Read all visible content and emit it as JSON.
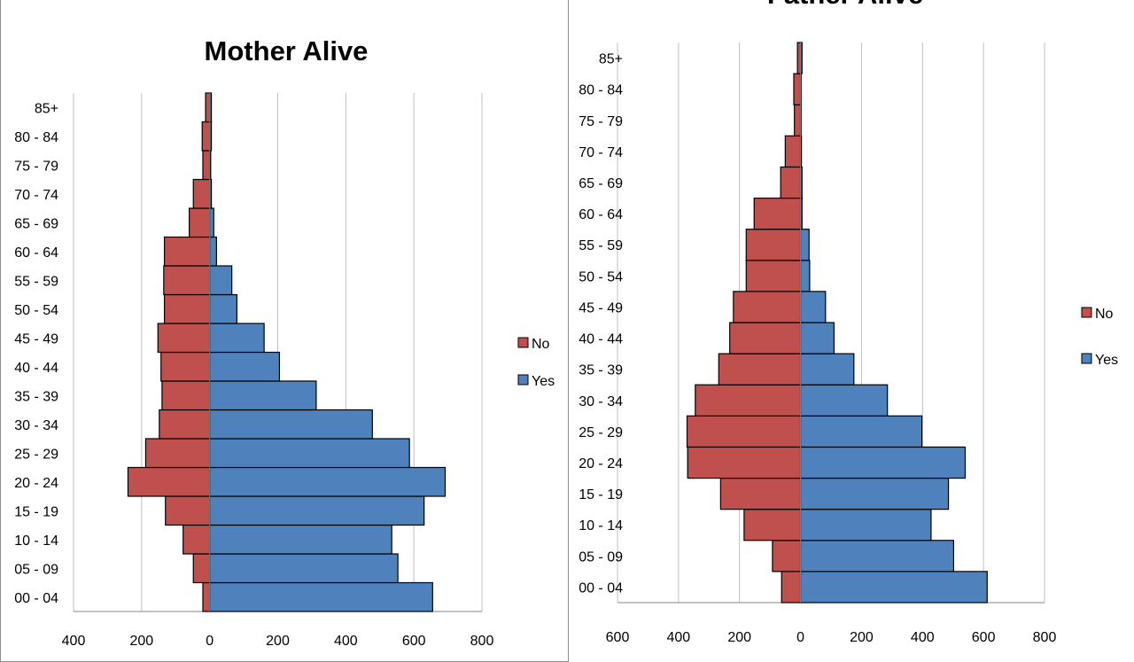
{
  "chart_data": [
    {
      "type": "bar",
      "orientation": "horizontal",
      "title": "Mother Alive",
      "categories": [
        "00 - 04",
        "05 - 09",
        "10 - 14",
        "15 - 19",
        "20 - 24",
        "25 - 29",
        "30 - 34",
        "35 - 39",
        "40 - 44",
        "45 - 49",
        "50 - 54",
        "55 - 59",
        "60 - 64",
        "65 - 69",
        "70 - 74",
        "75 - 79",
        "80 - 84",
        "85+"
      ],
      "series": [
        {
          "name": "No",
          "color": "#c0504d",
          "direction": "left",
          "values": [
            20,
            48,
            78,
            130,
            240,
            188,
            148,
            140,
            143,
            152,
            133,
            135,
            133,
            60,
            48,
            20,
            22,
            12
          ]
        },
        {
          "name": "Yes",
          "color": "#4f81bd",
          "direction": "right",
          "values": [
            655,
            553,
            535,
            630,
            692,
            587,
            478,
            313,
            205,
            160,
            80,
            65,
            20,
            12,
            5,
            3,
            5,
            5
          ]
        }
      ],
      "xlim": [
        -400,
        800
      ],
      "xticks": [
        -400,
        -200,
        0,
        200,
        400,
        600,
        800
      ],
      "xtick_labels": [
        "400",
        "200",
        "0",
        "200",
        "400",
        "600",
        "800"
      ],
      "grid": true,
      "legend": "right",
      "legend_entries": [
        "No",
        "Yes"
      ]
    },
    {
      "type": "bar",
      "orientation": "horizontal",
      "title": "Father Alive",
      "categories": [
        "00 - 04",
        "05 - 09",
        "10 - 14",
        "15 - 19",
        "20 - 24",
        "25 - 29",
        "30 - 34",
        "35 - 39",
        "40 - 44",
        "45 - 49",
        "50 - 54",
        "55 - 59",
        "60 - 64",
        "65 - 69",
        "70 - 74",
        "75 - 79",
        "80 - 84",
        "85+"
      ],
      "series": [
        {
          "name": "No",
          "color": "#c0504d",
          "direction": "left",
          "values": [
            62,
            92,
            185,
            262,
            370,
            372,
            345,
            268,
            232,
            220,
            178,
            178,
            152,
            65,
            50,
            20,
            22,
            10
          ]
        },
        {
          "name": "Yes",
          "color": "#4f81bd",
          "direction": "right",
          "values": [
            612,
            502,
            428,
            485,
            540,
            398,
            285,
            175,
            110,
            82,
            30,
            28,
            5,
            5,
            3,
            2,
            2,
            5
          ]
        }
      ],
      "xlim": [
        -600,
        800
      ],
      "xticks": [
        -600,
        -400,
        -200,
        0,
        200,
        400,
        600,
        800
      ],
      "xtick_labels": [
        "600",
        "400",
        "200",
        "0",
        "200",
        "400",
        "600",
        "800"
      ],
      "grid": true,
      "legend": "right",
      "legend_entries": [
        "No",
        "Yes"
      ]
    }
  ]
}
